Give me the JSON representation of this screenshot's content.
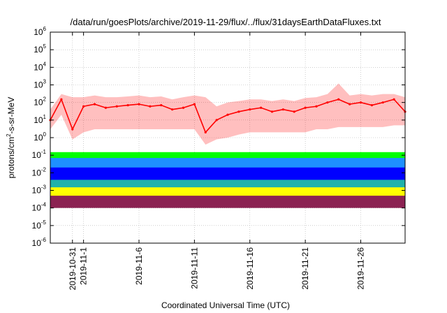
{
  "chart_data": {
    "type": "line",
    "title": "/data/run/goesPlots/archive/2019-11-29/flux/../flux/31daysEarthDataFluxes.txt",
    "xlabel": "Coordinated Universal Time (UTC)",
    "ylabel_parts": [
      "protons/cm",
      "2",
      "-s-sr-MeV"
    ],
    "y_scale": "log",
    "ylim_exponent": [
      -6,
      6
    ],
    "y_tick_labels": [
      {
        "base": "10",
        "exp": "-6"
      },
      {
        "base": "10",
        "exp": "-5"
      },
      {
        "base": "10",
        "exp": "-4"
      },
      {
        "base": "10",
        "exp": "-3"
      },
      {
        "base": "10",
        "exp": "-2"
      },
      {
        "base": "10",
        "exp": "-1"
      },
      {
        "base": "10",
        "exp": "0"
      },
      {
        "base": "10",
        "exp": "1"
      },
      {
        "base": "10",
        "exp": "2"
      },
      {
        "base": "10",
        "exp": "3"
      },
      {
        "base": "10",
        "exp": "4"
      },
      {
        "base": "10",
        "exp": "5"
      },
      {
        "base": "10",
        "exp": "6"
      }
    ],
    "xlim": [
      "2019-10-29",
      "2019-11-30"
    ],
    "x_ticks": [
      {
        "date": "2019-10-31",
        "label": "2019-10-31"
      },
      {
        "date": "2019-11-01",
        "label": "2019-11-1"
      },
      {
        "date": "2019-11-06",
        "label": "2019-11-6"
      },
      {
        "date": "2019-11-11",
        "label": "2019-11-11"
      },
      {
        "date": "2019-11-16",
        "label": "2019-11-16"
      },
      {
        "date": "2019-11-21",
        "label": "2019-11-21"
      },
      {
        "date": "2019-11-26",
        "label": "2019-11-26"
      }
    ],
    "grid": true,
    "series": [
      {
        "color": "#ff0000",
        "style": "line",
        "x": [
          "2019-10-29",
          "2019-10-30",
          "2019-10-31",
          "2019-11-01",
          "2019-11-02",
          "2019-11-03",
          "2019-11-04",
          "2019-11-05",
          "2019-11-06",
          "2019-11-07",
          "2019-11-08",
          "2019-11-09",
          "2019-11-10",
          "2019-11-11",
          "2019-11-12",
          "2019-11-13",
          "2019-11-14",
          "2019-11-15",
          "2019-11-16",
          "2019-11-17",
          "2019-11-18",
          "2019-11-19",
          "2019-11-20",
          "2019-11-21",
          "2019-11-22",
          "2019-11-23",
          "2019-11-24",
          "2019-11-25",
          "2019-11-26",
          "2019-11-27",
          "2019-11-28",
          "2019-11-29",
          "2019-11-30"
        ],
        "y": [
          10,
          150,
          3,
          60,
          80,
          50,
          60,
          70,
          80,
          60,
          70,
          40,
          50,
          80,
          2,
          10,
          20,
          30,
          40,
          50,
          30,
          40,
          30,
          50,
          60,
          100,
          150,
          80,
          100,
          70,
          100,
          150,
          30
        ],
        "y_min": [
          3,
          20,
          0.8,
          2,
          3,
          3,
          3,
          3,
          3,
          3,
          3,
          3,
          3,
          3,
          0.4,
          0.8,
          1,
          1.5,
          2,
          2,
          2,
          2,
          2,
          2,
          3,
          3,
          4,
          4,
          4,
          4,
          4,
          5,
          5
        ],
        "y_max": [
          40,
          300,
          200,
          200,
          250,
          200,
          200,
          220,
          250,
          200,
          220,
          150,
          200,
          250,
          200,
          60,
          100,
          120,
          150,
          150,
          120,
          150,
          120,
          180,
          200,
          300,
          1200,
          250,
          300,
          250,
          300,
          300,
          200
        ]
      },
      {
        "color": "#00ff00",
        "style": "band",
        "x": [
          "2019-10-29",
          "2019-11-30"
        ],
        "y_min": [
          0.02,
          0.02
        ],
        "y_max": [
          0.15,
          0.15
        ]
      },
      {
        "color": "#1e90ff",
        "style": "band",
        "x": [
          "2019-10-29",
          "2019-11-30"
        ],
        "y_min": [
          0.005,
          0.005
        ],
        "y_max": [
          0.07,
          0.07
        ]
      },
      {
        "color": "#0000ff",
        "style": "band",
        "x": [
          "2019-10-29",
          "2019-11-30"
        ],
        "y_min": [
          0.003,
          0.003
        ],
        "y_max": [
          0.02,
          0.02
        ]
      },
      {
        "color": "#20b2aa",
        "style": "band",
        "x": [
          "2019-10-29",
          "2019-11-30"
        ],
        "y_min": [
          0.001,
          0.001
        ],
        "y_max": [
          0.004,
          0.004
        ]
      },
      {
        "color": "#ffff00",
        "style": "band",
        "x": [
          "2019-10-29",
          "2019-11-30"
        ],
        "y_min": [
          0.0004,
          0.0004
        ],
        "y_max": [
          0.0015,
          0.0015
        ]
      },
      {
        "color": "#8b2252",
        "style": "band",
        "x": [
          "2019-10-29",
          "2019-11-30"
        ],
        "y_min": [
          0.0001,
          0.0001
        ],
        "y_max": [
          0.0005,
          0.0005
        ]
      }
    ]
  }
}
